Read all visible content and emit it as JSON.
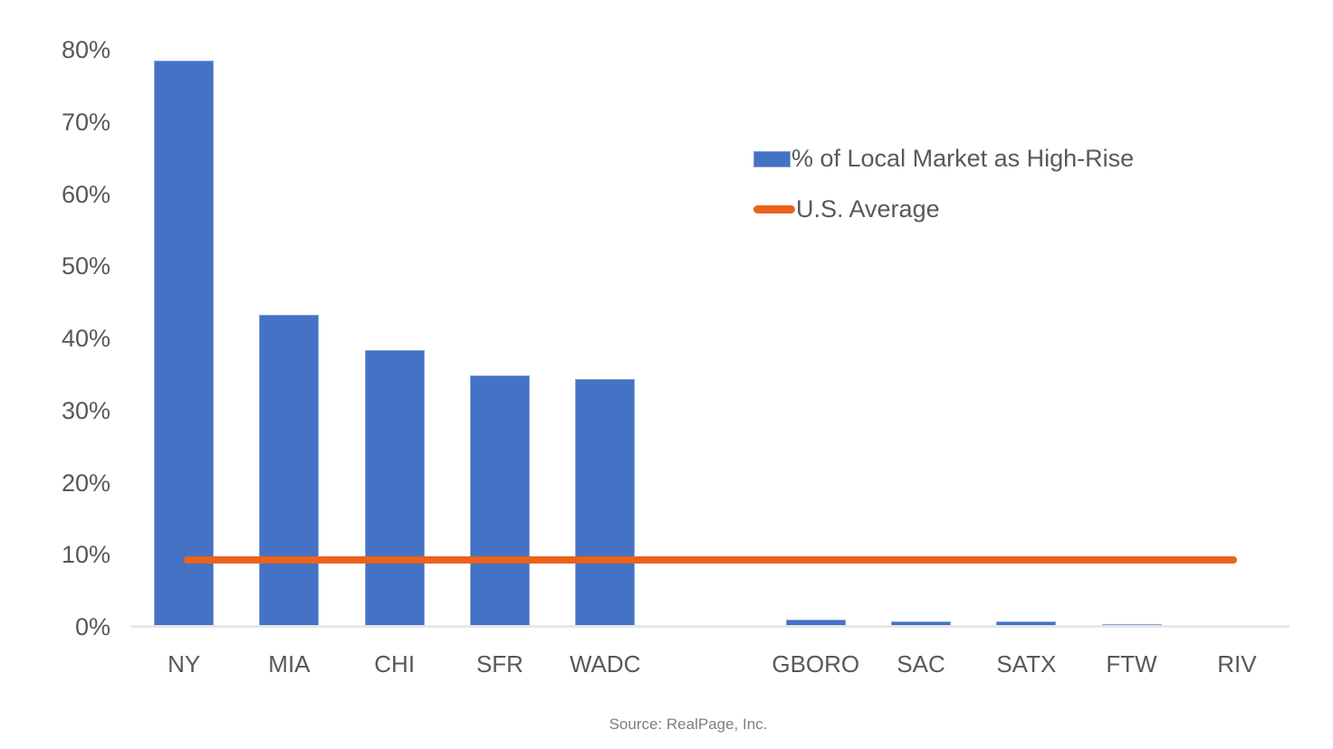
{
  "chart_data": {
    "type": "bar",
    "title": "",
    "categories": [
      "NY",
      "MIA",
      "CHI",
      "SFR",
      "WADC",
      "",
      "GBORO",
      "SAC",
      "SATX",
      "FTW",
      "RIV"
    ],
    "series": [
      {
        "name": "% of Local Market as High-Rise",
        "type": "bar",
        "color": "#4472c4",
        "values": [
          78.5,
          43.2,
          38.4,
          34.9,
          34.4,
          null,
          1.0,
          0.7,
          0.7,
          0.4,
          0.3
        ]
      },
      {
        "name": "U.S. Average",
        "type": "line",
        "color": "#eb621c",
        "value": 9.3
      }
    ],
    "xlabel": "",
    "ylabel": "",
    "ylim": [
      0,
      80
    ],
    "y_tick_step": 10,
    "y_tick_suffix": "%",
    "grid": false,
    "legend_position": "right-top"
  },
  "colors": {
    "bar_blue": "#4472c4",
    "line_orange": "#eb621c",
    "axis_line": "#e7e7e7",
    "tick_text": "#57585a",
    "source_text": "#7b7f85"
  },
  "footer": {
    "source": "Source: RealPage, Inc."
  }
}
